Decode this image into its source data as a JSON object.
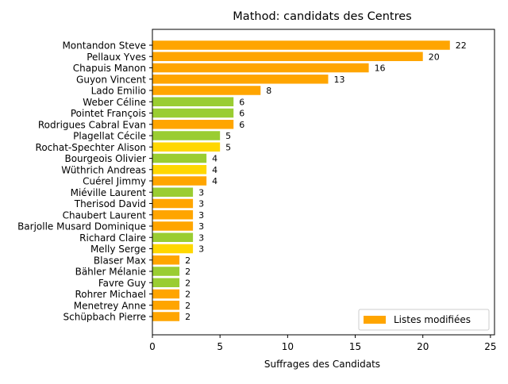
{
  "chart_data": {
    "type": "bar",
    "orientation": "horizontal",
    "title": "Mathod: candidats des Centres",
    "xlabel": "Suffrages des Candidats",
    "ylabel": "",
    "xlim": [
      0,
      25.3
    ],
    "xticks": [
      0,
      5,
      10,
      15,
      20,
      25
    ],
    "grid": false,
    "legend": {
      "position": "bottom-right",
      "entries": [
        {
          "label": "Listes modifiées",
          "color": "#ffa500"
        }
      ]
    },
    "categories": [
      "Montandon Steve",
      "Pellaux Yves",
      "Chapuis Manon",
      "Guyon Vincent",
      "Lado Emilio",
      "Weber Céline",
      "Pointet François",
      "Rodrigues Cabral Evan",
      "Plagellat Cécile",
      "Rochat-Spechter Alison",
      "Bourgeois Olivier",
      "Wüthrich Andreas",
      "Cuérel Jimmy",
      "Miéville Laurent",
      "Therisod David",
      "Chaubert Laurent",
      "Barjolle Musard Dominique",
      "Richard Claire",
      "Melly Serge",
      "Blaser Max",
      "Bähler Mélanie",
      "Favre Guy",
      "Rohrer Michael",
      "Menetrey Anne",
      "Schüpbach Pierre"
    ],
    "values": [
      22,
      20,
      16,
      13,
      8,
      6,
      6,
      6,
      5,
      5,
      4,
      4,
      4,
      3,
      3,
      3,
      3,
      3,
      3,
      2,
      2,
      2,
      2,
      2,
      2
    ],
    "data_labels": [
      "22",
      "20",
      "16",
      "13",
      "8",
      "6",
      "6",
      "6",
      "5",
      "5",
      "4",
      "4",
      "4",
      "3",
      "3",
      "3",
      "3",
      "3",
      "3",
      "2",
      "2",
      "2",
      "2",
      "2",
      "2"
    ],
    "colors": [
      "#ffa500",
      "#ffa500",
      "#ffa500",
      "#ffa500",
      "#ffa500",
      "#9acd32",
      "#9acd32",
      "#ffa500",
      "#9acd32",
      "#ffd700",
      "#9acd32",
      "#ffd700",
      "#ffa500",
      "#9acd32",
      "#ffa500",
      "#ffa500",
      "#ffa500",
      "#9acd32",
      "#ffd700",
      "#ffa500",
      "#9acd32",
      "#9acd32",
      "#ffa500",
      "#ffa500",
      "#ffa500"
    ]
  }
}
